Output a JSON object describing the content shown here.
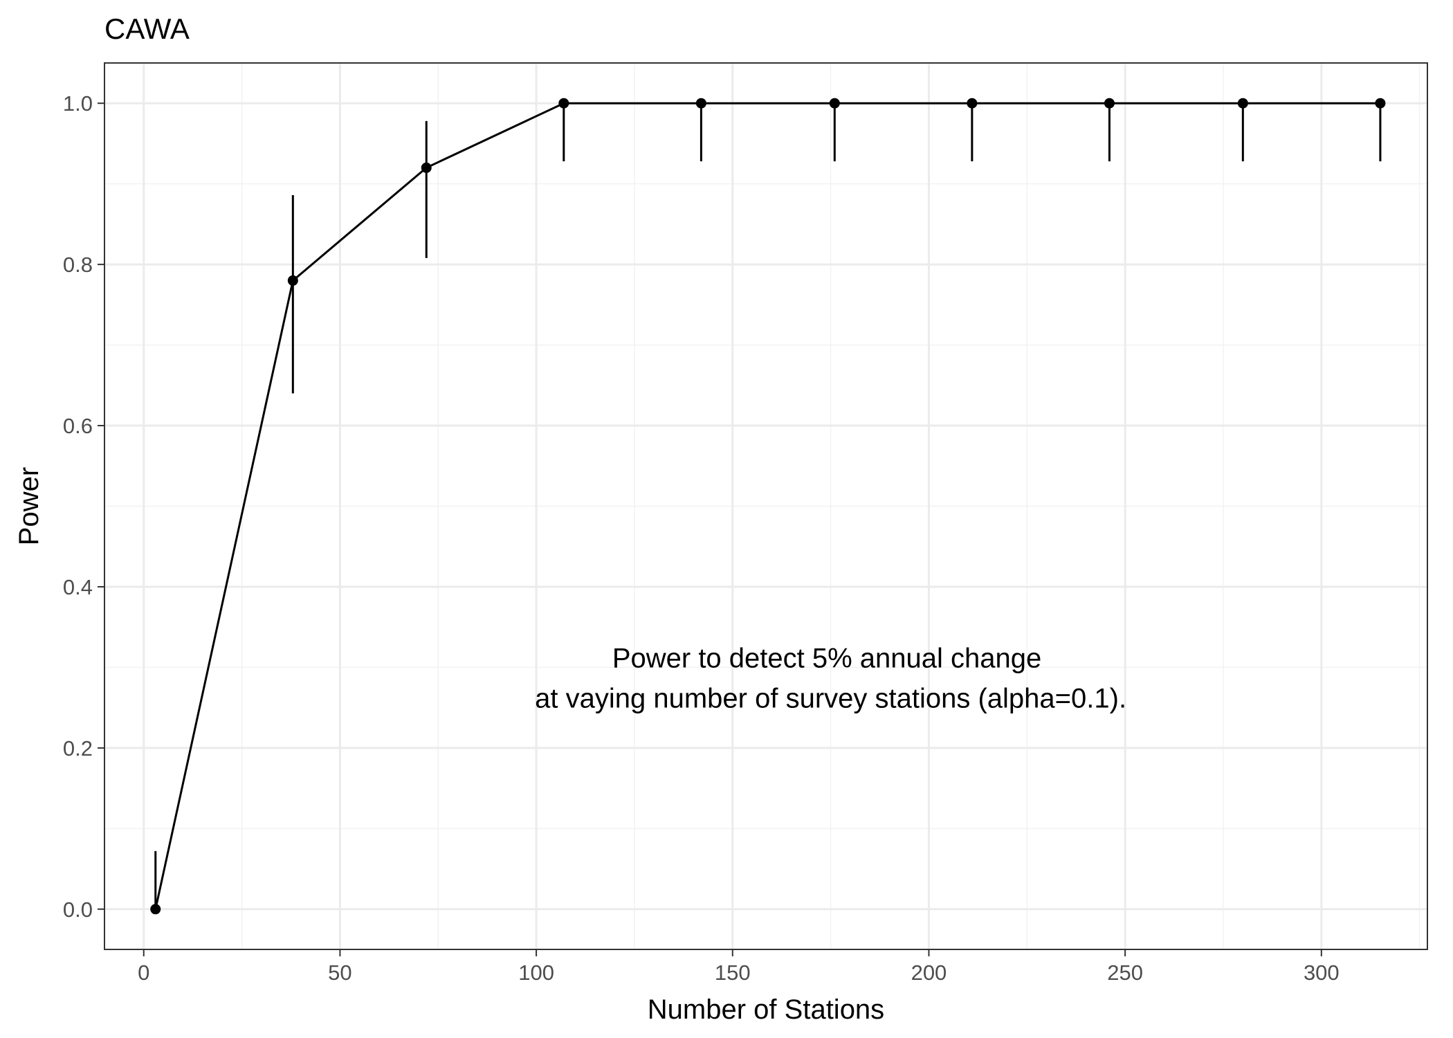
{
  "chart_data": {
    "type": "line",
    "title": "CAWA",
    "xlabel": "Number of Stations",
    "ylabel": "Power",
    "xlim": [
      -10,
      327
    ],
    "ylim": [
      -0.05,
      1.05
    ],
    "x_ticks": [
      0,
      50,
      100,
      150,
      200,
      250,
      300
    ],
    "y_ticks": [
      0.0,
      0.2,
      0.4,
      0.6,
      0.8,
      1.0
    ],
    "x_tick_labels": [
      "0",
      "50",
      "100",
      "150",
      "200",
      "250",
      "300"
    ],
    "y_tick_labels": [
      "0.0",
      "0.2",
      "0.4",
      "0.6",
      "0.8",
      "1.0"
    ],
    "grid": true,
    "x": [
      3,
      38,
      72,
      107,
      142,
      176,
      211,
      246,
      280,
      315
    ],
    "y": [
      0.0,
      0.78,
      0.92,
      1.0,
      1.0,
      1.0,
      1.0,
      1.0,
      1.0,
      1.0
    ],
    "y_lower": [
      0.0,
      0.64,
      0.808,
      0.928,
      0.928,
      0.928,
      0.928,
      0.928,
      0.928,
      0.928
    ],
    "y_upper": [
      0.072,
      0.886,
      0.978,
      1.0,
      1.0,
      1.0,
      1.0,
      1.0,
      1.0,
      1.0
    ],
    "annotation": {
      "lines": [
        "Power to detect 5% annual change",
        "at vaying number of survey stations (alpha=0.1)."
      ],
      "x": 175,
      "y": 0.286
    }
  }
}
